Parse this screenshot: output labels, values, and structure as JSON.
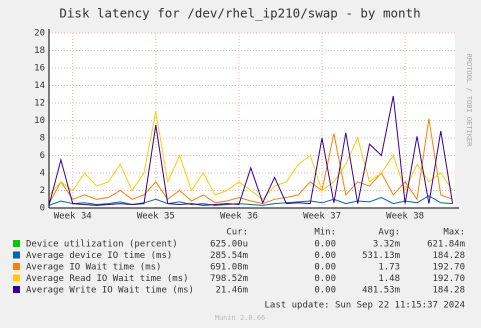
{
  "chart_data": {
    "type": "line",
    "title": "Disk latency for /dev/rhel_ip210/swap - by month",
    "side_label": "RRDTOOL / TOBI OETIKER",
    "x": [
      -2,
      -1,
      0,
      1,
      2,
      3,
      4,
      5,
      6,
      7,
      8,
      9,
      10,
      11,
      12,
      13,
      14,
      15,
      16,
      17,
      18,
      19,
      20,
      21,
      22,
      23,
      24,
      25,
      26,
      27,
      28,
      29,
      30,
      31,
      32
    ],
    "xlim": [
      -2,
      32.2
    ],
    "xticks": [
      {
        "value": 0,
        "label": "Week 34"
      },
      {
        "value": 7,
        "label": "Week 35"
      },
      {
        "value": 14,
        "label": "Week 36"
      },
      {
        "value": 21,
        "label": "Week 37"
      },
      {
        "value": 28,
        "label": "Week 38"
      }
    ],
    "ylim": [
      0,
      20
    ],
    "yticks": [
      0,
      2,
      4,
      6,
      8,
      10,
      12,
      14,
      16,
      18,
      20
    ],
    "grid": true,
    "series": [
      {
        "name": "Device utilization (percent)",
        "color": "#00cc00",
        "values": [
          0,
          0,
          0,
          0,
          0,
          0,
          0,
          0,
          0,
          0,
          0,
          0,
          0,
          0,
          0,
          0,
          0,
          0,
          0,
          0,
          0,
          0,
          0,
          0,
          0,
          0,
          0,
          0,
          0,
          0,
          0,
          0,
          0,
          0,
          0
        ]
      },
      {
        "name": "Average device IO time (ms)",
        "color": "#0066b3",
        "values": [
          0.3,
          0.8,
          0.5,
          0.6,
          0.4,
          0.5,
          0.7,
          0.4,
          0.6,
          1,
          0.5,
          0.7,
          0.4,
          0.5,
          0.3,
          0.4,
          0.5,
          0.4,
          0.3,
          0.5,
          0.6,
          0.7,
          0.8,
          0.6,
          1,
          0.5,
          0.8,
          0.7,
          1.2,
          0.5,
          0.8,
          0.6,
          1.4,
          0.6,
          0.5
        ]
      },
      {
        "name": "Average IO Wait time (ms)",
        "color": "#ff8000",
        "values": [
          0.5,
          3,
          1,
          1.5,
          1,
          1.2,
          2,
          1,
          1.5,
          3,
          1,
          2,
          0.8,
          1.5,
          0.6,
          0.8,
          1.2,
          0.8,
          0.5,
          1,
          1.2,
          1.5,
          3,
          2,
          8.5,
          1.5,
          3,
          2.5,
          4,
          1.5,
          3,
          1,
          10.2,
          1.5,
          1
        ]
      },
      {
        "name": "Average Read IO Wait time (ms)",
        "color": "#ffcc00",
        "values": [
          1.5,
          3,
          2,
          4,
          2.5,
          3,
          5,
          2,
          4,
          11,
          3,
          6,
          2,
          4,
          1.5,
          2,
          3,
          2,
          1,
          2.5,
          3,
          5,
          6,
          2,
          3,
          5,
          8,
          3,
          4,
          6,
          2,
          5,
          3,
          4,
          2
        ]
      },
      {
        "name": "Average Write IO Wait time (ms)",
        "color": "#330099",
        "values": [
          0.3,
          5.5,
          0.5,
          0.4,
          0.3,
          0.4,
          0.5,
          0.4,
          0.5,
          9.5,
          0.5,
          0.4,
          0.5,
          0.3,
          0.4,
          0.5,
          0.4,
          4.6,
          0.6,
          3.5,
          0.5,
          0.6,
          0.5,
          8,
          0.6,
          8.6,
          0.5,
          7.3,
          6,
          12.8,
          0.5,
          8.2,
          0.5,
          8.8,
          0.5
        ]
      }
    ],
    "summary": {
      "columns": [
        "Cur:",
        "Min:",
        "Avg:",
        "Max:"
      ],
      "rows": [
        [
          "625.00u",
          "0.00",
          "3.32m",
          "621.84m"
        ],
        [
          "285.54m",
          "0.00",
          "531.13m",
          "184.28"
        ],
        [
          "691.08m",
          "0.00",
          "1.73",
          "192.70"
        ],
        [
          "798.52m",
          "0.00",
          "1.48",
          "192.70"
        ],
        [
          "21.46m",
          "0.00",
          "481.53m",
          "184.28"
        ]
      ]
    },
    "last_update": "Last update: Sun Sep 22 11:15:37 2024",
    "footer": "Munin 2.0.66"
  }
}
